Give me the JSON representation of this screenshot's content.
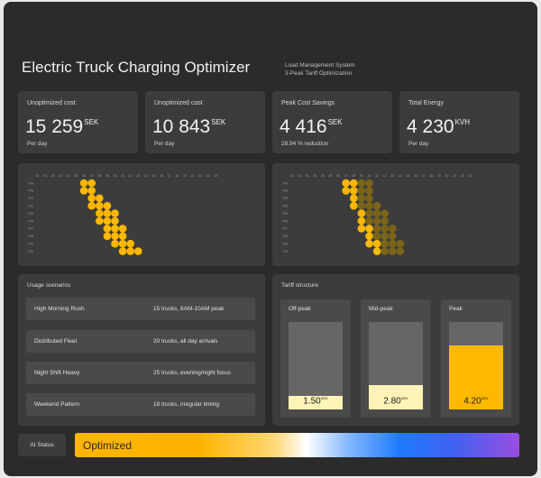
{
  "header": {
    "title": "Electric Truck Charging Optimizer",
    "subtitle_line1": "Load Management System",
    "subtitle_line2": "3-Peak Tariff Optimization"
  },
  "stats": [
    {
      "label": "Unoptimized cost",
      "value": "15 259",
      "unit": "SEK",
      "sub": "Per day"
    },
    {
      "label": "Unoptimized cost",
      "value": "10 843",
      "unit": "SEK",
      "sub": "Per day"
    },
    {
      "label": "Peak Cost Savings",
      "value": "4 416",
      "unit": "SEK",
      "sub": "28.94 % reduction"
    },
    {
      "label": "Total Energy",
      "value": "4 230",
      "unit": "KVH",
      "sub": "Per day"
    }
  ],
  "heatmaps": {
    "hours": [
      "00",
      "01",
      "02",
      "03",
      "04",
      "05",
      "06",
      "07",
      "08",
      "09",
      "10",
      "11",
      "12",
      "13",
      "14",
      "15",
      "16",
      "17",
      "18",
      "19",
      "20",
      "21",
      "22",
      "23"
    ],
    "rows": [
      "T04",
      "T05",
      "T03",
      "T02",
      "T05",
      "T06",
      "T07",
      "T08",
      "T09",
      "T10"
    ],
    "left": {
      "bright_rows": [
        [
          6,
          7
        ],
        [
          6,
          7
        ],
        [
          7,
          8
        ],
        [
          7,
          8,
          9
        ],
        [
          8,
          9,
          10
        ],
        [
          8,
          9,
          10
        ],
        [
          9,
          10,
          11
        ],
        [
          9,
          10,
          11
        ],
        [
          10,
          11,
          12
        ],
        [
          11,
          12,
          13
        ]
      ]
    },
    "right": {
      "bright_rows": [
        [
          7,
          8
        ],
        [
          7,
          8
        ],
        [
          8
        ],
        [
          8
        ],
        [
          9
        ],
        [
          9
        ],
        [
          9,
          10
        ],
        [
          10
        ],
        [
          10,
          11
        ],
        [
          11
        ]
      ],
      "dim_rows": [
        [
          9,
          10
        ],
        [
          9,
          10
        ],
        [
          9,
          10
        ],
        [
          9,
          10,
          11
        ],
        [
          10,
          11,
          12
        ],
        [
          10,
          11,
          12
        ],
        [
          11,
          12,
          13
        ],
        [
          11,
          12,
          13
        ],
        [
          12,
          13,
          14
        ],
        [
          12,
          13,
          14
        ]
      ]
    },
    "colors": {
      "bright": "#ffb800",
      "dim": "#7a6418"
    }
  },
  "scenarios": {
    "title": "Usage scenarios",
    "items": [
      {
        "name": "High Morning Rush",
        "desc": "15 trucks, 6AM-10AM peak"
      },
      {
        "name": "Distributed Fleet",
        "desc": "20 trucks, all day arrivals"
      },
      {
        "name": "Night Shift Heavy",
        "desc": "25 trucks, evening/night focus"
      },
      {
        "name": "Weekend Pattern",
        "desc": "18 trucks, irregular timing"
      }
    ]
  },
  "tariff": {
    "title": "Tariff structure",
    "columns": [
      {
        "label": "Off-peak",
        "price": "1.50",
        "unit": "SEK",
        "level": 0.15,
        "color": "#fff3b8"
      },
      {
        "label": "Mid-peak",
        "price": "2.80",
        "unit": "SEK",
        "level": 0.28,
        "color": "#fff3b8"
      },
      {
        "label": "Peak",
        "price": "4.20",
        "unit": "SEK",
        "level": 0.73,
        "color": "#ffb800"
      }
    ]
  },
  "ai": {
    "label": "AI Status",
    "status": "Optimized"
  }
}
